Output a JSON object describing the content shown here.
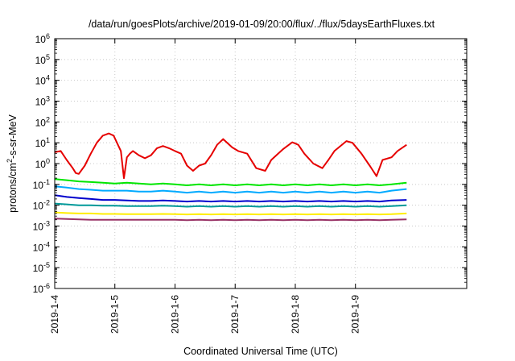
{
  "chart_data": {
    "type": "line",
    "title": "/data/run/goesPlots/archive/2019-01-09/20:00/flux/../flux/5daysEarthFluxes.txt",
    "xlabel": "Coordinated Universal Time (UTC)",
    "ylabel": "protons/cm²-s-sr-MeV",
    "ylabel_parts": [
      "protons/cm",
      "2",
      "-s-sr-MeV"
    ],
    "yscale": "log",
    "ylim": [
      1e-06,
      1000000
    ],
    "xlim": [
      0,
      6.85
    ],
    "x_unit": "days since 2019-01-04 00:00 UTC",
    "grid": true,
    "x_ticks": [
      {
        "x": 0,
        "label": "2019-1-4"
      },
      {
        "x": 1,
        "label": "2019-1-5"
      },
      {
        "x": 2,
        "label": "2019-1-6"
      },
      {
        "x": 3,
        "label": "2019-1-7"
      },
      {
        "x": 4,
        "label": "2019-1-8"
      },
      {
        "x": 5,
        "label": "2019-1-9"
      }
    ],
    "y_ticks": [
      {
        "exp": -6,
        "base": "10",
        "power": "-6"
      },
      {
        "exp": -5,
        "base": "10",
        "power": "-5"
      },
      {
        "exp": -4,
        "base": "10",
        "power": "-4"
      },
      {
        "exp": -3,
        "base": "10",
        "power": "-3"
      },
      {
        "exp": -2,
        "base": "10",
        "power": "-2"
      },
      {
        "exp": -1,
        "base": "10",
        "power": "-1"
      },
      {
        "exp": 0,
        "base": "10",
        "power": "0"
      },
      {
        "exp": 1,
        "base": "10",
        "power": "1"
      },
      {
        "exp": 2,
        "base": "10",
        "power": "2"
      },
      {
        "exp": 3,
        "base": "10",
        "power": "3"
      },
      {
        "exp": 4,
        "base": "10",
        "power": "4"
      },
      {
        "exp": 5,
        "base": "10",
        "power": "5"
      },
      {
        "exp": 6,
        "base": "10",
        "power": "6"
      }
    ],
    "series": [
      {
        "color": "#e60000",
        "x": [
          0.0,
          0.1,
          0.2,
          0.3,
          0.35,
          0.4,
          0.5,
          0.6,
          0.7,
          0.8,
          0.9,
          0.98,
          1.1,
          1.15,
          1.2,
          1.25,
          1.3,
          1.4,
          1.5,
          1.6,
          1.7,
          1.8,
          1.9,
          2.0,
          2.1,
          2.2,
          2.3,
          2.4,
          2.5,
          2.6,
          2.7,
          2.8,
          2.95,
          3.05,
          3.2,
          3.35,
          3.5,
          3.6,
          3.8,
          3.95,
          4.05,
          4.15,
          4.3,
          4.45,
          4.55,
          4.65,
          4.85,
          4.95,
          5.1,
          5.25,
          5.35,
          5.45,
          5.6,
          5.7,
          5.85
        ],
        "y": [
          3.5,
          4.0,
          1.5,
          0.6,
          0.35,
          0.32,
          0.8,
          3.0,
          10,
          22,
          28,
          22,
          4.0,
          0.2,
          2.0,
          3.0,
          4.0,
          2.5,
          1.8,
          2.5,
          5.5,
          7.0,
          5.5,
          4.0,
          3.0,
          0.8,
          0.45,
          0.8,
          1.0,
          2.5,
          8.0,
          15,
          6.0,
          4.0,
          3.0,
          0.6,
          0.45,
          1.5,
          5.0,
          10.5,
          8.0,
          3.0,
          1.0,
          0.6,
          1.5,
          4.0,
          12,
          10,
          3.0,
          0.7,
          0.25,
          1.5,
          2.0,
          4.0,
          8.0
        ]
      },
      {
        "color": "#00e600",
        "x": [
          0.0,
          0.2,
          0.4,
          0.6,
          0.8,
          1.0,
          1.2,
          1.4,
          1.6,
          1.8,
          2.0,
          2.2,
          2.4,
          2.6,
          2.8,
          3.0,
          3.2,
          3.4,
          3.6,
          3.8,
          4.0,
          4.2,
          4.4,
          4.6,
          4.8,
          5.0,
          5.2,
          5.4,
          5.6,
          5.85
        ],
        "y": [
          0.18,
          0.16,
          0.14,
          0.13,
          0.12,
          0.11,
          0.12,
          0.11,
          0.1,
          0.11,
          0.1,
          0.09,
          0.1,
          0.09,
          0.1,
          0.09,
          0.1,
          0.09,
          0.1,
          0.09,
          0.1,
          0.09,
          0.1,
          0.09,
          0.1,
          0.09,
          0.1,
          0.09,
          0.1,
          0.12
        ]
      },
      {
        "color": "#00aaff",
        "x": [
          0.0,
          0.2,
          0.4,
          0.6,
          0.8,
          1.0,
          1.2,
          1.4,
          1.6,
          1.8,
          2.0,
          2.2,
          2.4,
          2.6,
          2.8,
          3.0,
          3.2,
          3.4,
          3.6,
          3.8,
          4.0,
          4.2,
          4.4,
          4.6,
          4.8,
          5.0,
          5.2,
          5.4,
          5.6,
          5.85
        ],
        "y": [
          0.08,
          0.07,
          0.06,
          0.055,
          0.05,
          0.05,
          0.05,
          0.045,
          0.045,
          0.05,
          0.045,
          0.04,
          0.045,
          0.04,
          0.045,
          0.04,
          0.045,
          0.04,
          0.045,
          0.04,
          0.045,
          0.04,
          0.045,
          0.04,
          0.045,
          0.04,
          0.045,
          0.04,
          0.05,
          0.06
        ]
      },
      {
        "color": "#0000cc",
        "x": [
          0.0,
          0.2,
          0.4,
          0.6,
          0.8,
          1.0,
          1.2,
          1.4,
          1.6,
          1.8,
          2.0,
          2.2,
          2.4,
          2.6,
          2.8,
          3.0,
          3.2,
          3.4,
          3.6,
          3.8,
          4.0,
          4.2,
          4.4,
          4.6,
          4.8,
          5.0,
          5.2,
          5.4,
          5.6,
          5.85
        ],
        "y": [
          0.03,
          0.025,
          0.022,
          0.02,
          0.018,
          0.018,
          0.017,
          0.016,
          0.016,
          0.017,
          0.016,
          0.015,
          0.016,
          0.015,
          0.016,
          0.015,
          0.016,
          0.015,
          0.016,
          0.015,
          0.016,
          0.015,
          0.016,
          0.015,
          0.016,
          0.015,
          0.016,
          0.015,
          0.017,
          0.018
        ]
      },
      {
        "color": "#009999",
        "x": [
          0.0,
          0.2,
          0.4,
          0.6,
          0.8,
          1.0,
          1.2,
          1.4,
          1.6,
          1.8,
          2.0,
          2.2,
          2.4,
          2.6,
          2.8,
          3.0,
          3.2,
          3.4,
          3.6,
          3.8,
          4.0,
          4.2,
          4.4,
          4.6,
          4.8,
          5.0,
          5.2,
          5.4,
          5.6,
          5.85
        ],
        "y": [
          0.012,
          0.011,
          0.01,
          0.01,
          0.0095,
          0.0095,
          0.009,
          0.009,
          0.009,
          0.0095,
          0.009,
          0.0085,
          0.009,
          0.0085,
          0.009,
          0.0085,
          0.009,
          0.0085,
          0.009,
          0.0085,
          0.009,
          0.0085,
          0.009,
          0.0085,
          0.009,
          0.0085,
          0.009,
          0.0085,
          0.009,
          0.01
        ]
      },
      {
        "color": "#ffee00",
        "x": [
          0.0,
          0.2,
          0.4,
          0.6,
          0.8,
          1.0,
          1.2,
          1.4,
          1.6,
          1.8,
          2.0,
          2.2,
          2.4,
          2.6,
          2.8,
          3.0,
          3.2,
          3.4,
          3.6,
          3.8,
          4.0,
          4.2,
          4.4,
          4.6,
          4.8,
          5.0,
          5.2,
          5.4,
          5.6,
          5.85
        ],
        "y": [
          0.0045,
          0.0042,
          0.004,
          0.004,
          0.0038,
          0.0038,
          0.0037,
          0.0037,
          0.0037,
          0.0038,
          0.0037,
          0.0036,
          0.0037,
          0.0036,
          0.0037,
          0.0036,
          0.0037,
          0.0036,
          0.0037,
          0.0036,
          0.0037,
          0.0036,
          0.0037,
          0.0036,
          0.0037,
          0.0036,
          0.0037,
          0.0036,
          0.0037,
          0.004
        ]
      },
      {
        "color": "#993366",
        "x": [
          0.0,
          0.2,
          0.4,
          0.6,
          0.8,
          1.0,
          1.2,
          1.4,
          1.6,
          1.8,
          2.0,
          2.2,
          2.4,
          2.6,
          2.8,
          3.0,
          3.2,
          3.4,
          3.6,
          3.8,
          4.0,
          4.2,
          4.4,
          4.6,
          4.8,
          5.0,
          5.2,
          5.4,
          5.6,
          5.85
        ],
        "y": [
          0.0023,
          0.0022,
          0.0021,
          0.002,
          0.002,
          0.002,
          0.002,
          0.002,
          0.002,
          0.002,
          0.002,
          0.0019,
          0.002,
          0.0019,
          0.002,
          0.0019,
          0.002,
          0.0019,
          0.002,
          0.0019,
          0.002,
          0.0019,
          0.002,
          0.0019,
          0.002,
          0.0019,
          0.002,
          0.0019,
          0.002,
          0.0021
        ]
      }
    ]
  }
}
